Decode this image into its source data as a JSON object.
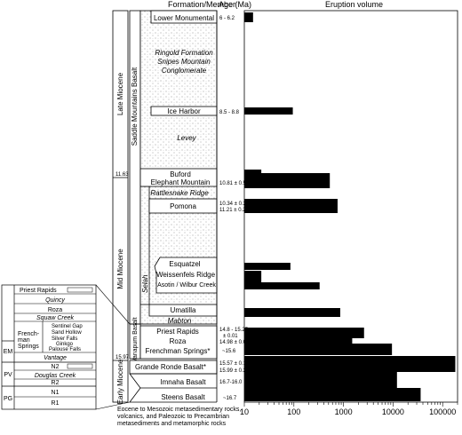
{
  "headers": {
    "formation": "Formation/Member",
    "age": "Age (Ma)",
    "volume": "Eruption volume"
  },
  "epochs": [
    {
      "label": "Late Miocene"
    },
    {
      "label": "Mid Miocene"
    },
    {
      "label": "Early Miocene"
    }
  ],
  "epoch_boundaries": [
    "11.63",
    "15.97"
  ],
  "groups": {
    "saddle": "Saddle Mountains Basalt",
    "wanapum": "Wanapum Basalt",
    "selah": "Selah"
  },
  "saddle_units": [
    {
      "name": "Lower Monumental",
      "age": "6 - 6.2",
      "italic": false
    },
    {
      "name": "Ringold Formation",
      "age": "",
      "italic": true
    },
    {
      "name": "Snipes Mountain",
      "age": "",
      "italic": true
    },
    {
      "name": "Conglomerate",
      "age": "",
      "italic": true
    },
    {
      "name": "Ice Harbor",
      "age": "8.5 - 8.8",
      "italic": false
    },
    {
      "name": "Levey",
      "age": "",
      "italic": true
    },
    {
      "name": "Buford",
      "age": "",
      "italic": false
    },
    {
      "name": "Elephant Mountain",
      "age": "10.81 ± 0.51",
      "italic": false
    },
    {
      "name": "Rattlesnake Ridge",
      "age": "",
      "italic": true
    },
    {
      "name": "Pomona",
      "age": "10.34 ± 0.21",
      "italic": false
    },
    {
      "name": "",
      "age": "11.21 ± 0.21",
      "italic": false
    },
    {
      "name": "Esquatzel",
      "age": "",
      "italic": false
    },
    {
      "name": "Weissenfels Ridge",
      "age": "",
      "italic": false
    },
    {
      "name": "Asotin / Wilbur Creek",
      "age": "",
      "italic": false
    },
    {
      "name": "Umatilla",
      "age": "",
      "italic": false
    },
    {
      "name": "Mabton",
      "age": "",
      "italic": true
    }
  ],
  "wanapum_units": [
    {
      "name": "Priest Rapids",
      "age": "14.8 - 15.25"
    },
    {
      "name": "",
      "age": "± 0.01"
    },
    {
      "name": "Roza",
      "age": "14.98 ± 0.06"
    },
    {
      "name": "Frenchman Springs*",
      "age": "~15.6"
    }
  ],
  "lower_units": [
    {
      "name": "Grande Ronde Basalt*",
      "age": "15.57 ± 0.15"
    },
    {
      "name": "",
      "age": "15.99 ± 0.2"
    },
    {
      "name": "Imnaha Basalt",
      "age": "16.7-16.0"
    },
    {
      "name": "Steens Basalt",
      "age": "~16.7"
    }
  ],
  "basement_note": [
    "Eocene to Mesozoic metasedimentary rocks,",
    "volcanics, and Paleozoic to Precambrian",
    "metasediments and metamorphic rocks"
  ],
  "inset": {
    "bands": [
      "EM",
      "PV",
      "PG"
    ],
    "members": [
      {
        "name": "Priest Rapids",
        "italic": false
      },
      {
        "name": "Quincy",
        "italic": true
      },
      {
        "name": "Roza",
        "italic": false
      },
      {
        "name": "Squaw Creek",
        "italic": true
      },
      {
        "name": "Sentinel Gap",
        "italic": false
      },
      {
        "name": "Sand Hollow",
        "italic": false
      },
      {
        "name": "Silver Falls",
        "italic": false
      },
      {
        "name": "Ginkgo",
        "italic": false
      },
      {
        "name": "Palouse Falls",
        "italic": false
      },
      {
        "name": "Vantage",
        "italic": true
      },
      {
        "name": "N2",
        "italic": false
      },
      {
        "name": "Douglas Creek",
        "italic": true
      },
      {
        "name": "R2",
        "italic": false
      },
      {
        "name": "N1",
        "italic": false
      },
      {
        "name": "R1",
        "italic": false
      }
    ],
    "group_l1": "French-",
    "group_l2": "man",
    "group_l3": "Springs"
  },
  "chart_data": {
    "type": "bar",
    "orientation": "horizontal",
    "title": "Eruption volume",
    "xscale": "log",
    "xlim": [
      10,
      200000
    ],
    "xticks": [
      "10",
      "100",
      "1000",
      "10000",
      "100000"
    ],
    "bars": [
      {
        "unit": "Lower Monumental",
        "value": 15
      },
      {
        "unit": "Ice Harbor",
        "value": 95
      },
      {
        "unit": "Buford",
        "value": 22
      },
      {
        "unit": "Elephant Mountain",
        "value": 530
      },
      {
        "unit": "Pomona",
        "value": 760
      },
      {
        "unit": "Esquatzel",
        "value": 85
      },
      {
        "unit": "Weissenfels Ridge",
        "value": 22
      },
      {
        "unit": "Asotin / Wilbur Creek",
        "value": 330
      },
      {
        "unit": "Umatilla",
        "value": 860
      },
      {
        "unit": "Priest Rapids",
        "value": 2600
      },
      {
        "unit": "Roza",
        "value": 1500
      },
      {
        "unit": "Frenchman Springs",
        "value": 9500
      },
      {
        "unit": "Grande Ronde Basalt",
        "value": 180000
      },
      {
        "unit": "Imnaha Basalt",
        "value": 12000
      },
      {
        "unit": "Steens Basalt",
        "value": 36000
      }
    ]
  }
}
